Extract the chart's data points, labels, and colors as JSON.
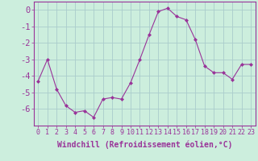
{
  "x": [
    0,
    1,
    2,
    3,
    4,
    5,
    6,
    7,
    8,
    9,
    10,
    11,
    12,
    13,
    14,
    15,
    16,
    17,
    18,
    19,
    20,
    21,
    22,
    23
  ],
  "y": [
    -4.3,
    -3.0,
    -4.8,
    -5.8,
    -6.2,
    -6.1,
    -6.5,
    -5.4,
    -5.3,
    -5.4,
    -4.4,
    -3.0,
    -1.5,
    -0.1,
    0.1,
    -0.4,
    -0.6,
    -1.8,
    -3.4,
    -3.8,
    -3.8,
    -4.2,
    -3.3,
    -3.3
  ],
  "xlabel": "Windchill (Refroidissement éolien,°C)",
  "ylim": [
    -7,
    0.5
  ],
  "xlim": [
    -0.5,
    23.5
  ],
  "yticks": [
    0,
    -1,
    -2,
    -3,
    -4,
    -5,
    -6
  ],
  "xticks": [
    0,
    1,
    2,
    3,
    4,
    5,
    6,
    7,
    8,
    9,
    10,
    11,
    12,
    13,
    14,
    15,
    16,
    17,
    18,
    19,
    20,
    21,
    22,
    23
  ],
  "line_color": "#993399",
  "marker": "D",
  "marker_size": 2.0,
  "bg_color": "#cceedd",
  "grid_color": "#aacccc",
  "xlabel_fontsize": 7.0,
  "ytick_fontsize": 7.5,
  "xtick_fontsize": 6.0,
  "tick_color": "#993399",
  "label_color": "#993399",
  "spine_color": "#993399"
}
